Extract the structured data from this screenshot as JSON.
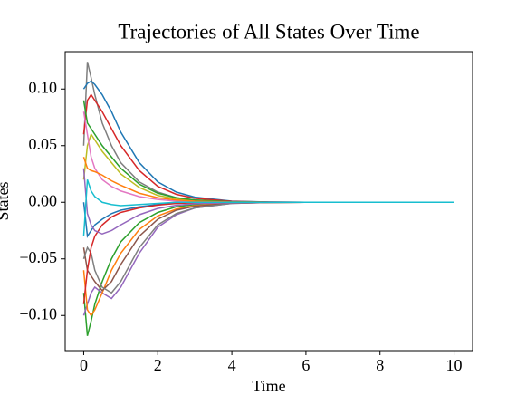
{
  "chart_data": {
    "type": "line",
    "title": "Trajectories of All States Over Time",
    "xlabel": "Time",
    "ylabel": "States",
    "x": [
      0,
      0.1,
      0.2,
      0.3,
      0.5,
      0.75,
      1,
      1.5,
      2,
      2.5,
      3,
      4,
      5,
      6,
      7,
      8,
      10
    ],
    "xlim": [
      -0.5,
      10.5
    ],
    "xticks": [
      0,
      2,
      4,
      6,
      8,
      10
    ],
    "ylim": [
      -0.131,
      0.133
    ],
    "yticks": [
      {
        "value": -0.1,
        "label": "−0.10"
      },
      {
        "value": -0.05,
        "label": "−0.05"
      },
      {
        "value": 0,
        "label": "0.00"
      },
      {
        "value": 0.05,
        "label": "0.05"
      },
      {
        "value": 0.1,
        "label": "0.10"
      }
    ],
    "series": [
      {
        "color": "#7f7f7f",
        "values": [
          0.05,
          0.124,
          0.11,
          0.095,
          0.07,
          0.05,
          0.035,
          0.018,
          0.009,
          0.004,
          0.002,
          0.0005,
          0.0001,
          0,
          0,
          0,
          0
        ]
      },
      {
        "color": "#1f77b4",
        "values": [
          0.1,
          0.105,
          0.107,
          0.104,
          0.095,
          0.08,
          0.062,
          0.035,
          0.018,
          0.009,
          0.0045,
          0.001,
          0.0002,
          0,
          0,
          0,
          0
        ]
      },
      {
        "color": "#2ca02c",
        "values": [
          -0.08,
          -0.118,
          -0.105,
          -0.09,
          -0.07,
          -0.05,
          -0.035,
          -0.018,
          -0.009,
          -0.004,
          -0.002,
          -0.0005,
          -0.0001,
          0,
          0,
          0,
          0
        ]
      },
      {
        "color": "#9467bd",
        "values": [
          -0.1,
          -0.09,
          -0.08,
          -0.075,
          -0.08,
          -0.085,
          -0.075,
          -0.045,
          -0.022,
          -0.011,
          -0.005,
          -0.001,
          -0.0002,
          0,
          0,
          0,
          0
        ]
      },
      {
        "color": "#d62728",
        "values": [
          0.06,
          0.09,
          0.095,
          0.09,
          0.08,
          0.065,
          0.05,
          0.028,
          0.014,
          0.007,
          0.0035,
          0.0008,
          0.0002,
          0,
          0,
          0,
          0
        ]
      },
      {
        "color": "#ff7f0e",
        "values": [
          -0.06,
          -0.095,
          -0.1,
          -0.095,
          -0.08,
          -0.06,
          -0.045,
          -0.024,
          -0.012,
          -0.006,
          -0.003,
          -0.0007,
          -0.0001,
          0,
          0,
          0,
          0
        ]
      },
      {
        "color": "#bcbd22",
        "values": [
          0.02,
          0.05,
          0.06,
          0.055,
          0.045,
          0.035,
          0.025,
          0.013,
          0.006,
          0.003,
          0.0015,
          0.0003,
          0,
          0,
          0,
          0,
          0
        ]
      },
      {
        "color": "#e377c2",
        "values": [
          0.08,
          0.06,
          0.04,
          0.03,
          0.02,
          0.014,
          0.01,
          0.005,
          0.0025,
          0.001,
          0.0005,
          0.0001,
          0,
          0,
          0,
          0,
          0
        ]
      },
      {
        "color": "#8c564b",
        "values": [
          -0.04,
          -0.06,
          -0.065,
          -0.07,
          -0.078,
          -0.07,
          -0.055,
          -0.03,
          -0.015,
          -0.007,
          -0.0035,
          -0.0008,
          -0.0002,
          0,
          0,
          0,
          0
        ]
      },
      {
        "color": "#7f7f7f",
        "values": [
          -0.05,
          -0.04,
          -0.045,
          -0.06,
          -0.075,
          -0.08,
          -0.07,
          -0.04,
          -0.02,
          -0.01,
          -0.005,
          -0.001,
          -0.0002,
          0,
          0,
          0,
          0
        ]
      },
      {
        "color": "#1f77b4",
        "values": [
          0,
          -0.03,
          -0.025,
          -0.02,
          -0.015,
          -0.01,
          -0.007,
          -0.004,
          -0.002,
          -0.001,
          0,
          0,
          0,
          0,
          0,
          0,
          0
        ]
      },
      {
        "color": "#2ca02c",
        "values": [
          0.09,
          0.07,
          0.065,
          0.06,
          0.05,
          0.04,
          0.03,
          0.016,
          0.008,
          0.004,
          0.002,
          0.0004,
          0,
          0,
          0,
          0,
          0
        ]
      },
      {
        "color": "#d62728",
        "values": [
          -0.09,
          -0.06,
          -0.04,
          -0.03,
          -0.02,
          -0.013,
          -0.009,
          -0.005,
          -0.0025,
          -0.001,
          -0.0005,
          -0.0001,
          0,
          0,
          0,
          0,
          0
        ]
      },
      {
        "color": "#ff7f0e",
        "values": [
          0.04,
          0.03,
          0.028,
          0.027,
          0.024,
          0.019,
          0.015,
          0.008,
          0.004,
          0.002,
          0.001,
          0.0002,
          0,
          0,
          0,
          0,
          0
        ]
      },
      {
        "color": "#9467bd",
        "values": [
          0.03,
          -0.01,
          -0.02,
          -0.025,
          -0.028,
          -0.025,
          -0.02,
          -0.011,
          -0.0055,
          -0.0027,
          -0.0013,
          -0.0003,
          0,
          0,
          0,
          0,
          0
        ]
      },
      {
        "color": "#17becf",
        "values": [
          -0.03,
          0.02,
          0.01,
          0.005,
          0,
          -0.002,
          -0.003,
          -0.002,
          -0.001,
          0,
          0,
          0,
          0,
          0,
          0,
          0,
          0
        ]
      }
    ]
  }
}
